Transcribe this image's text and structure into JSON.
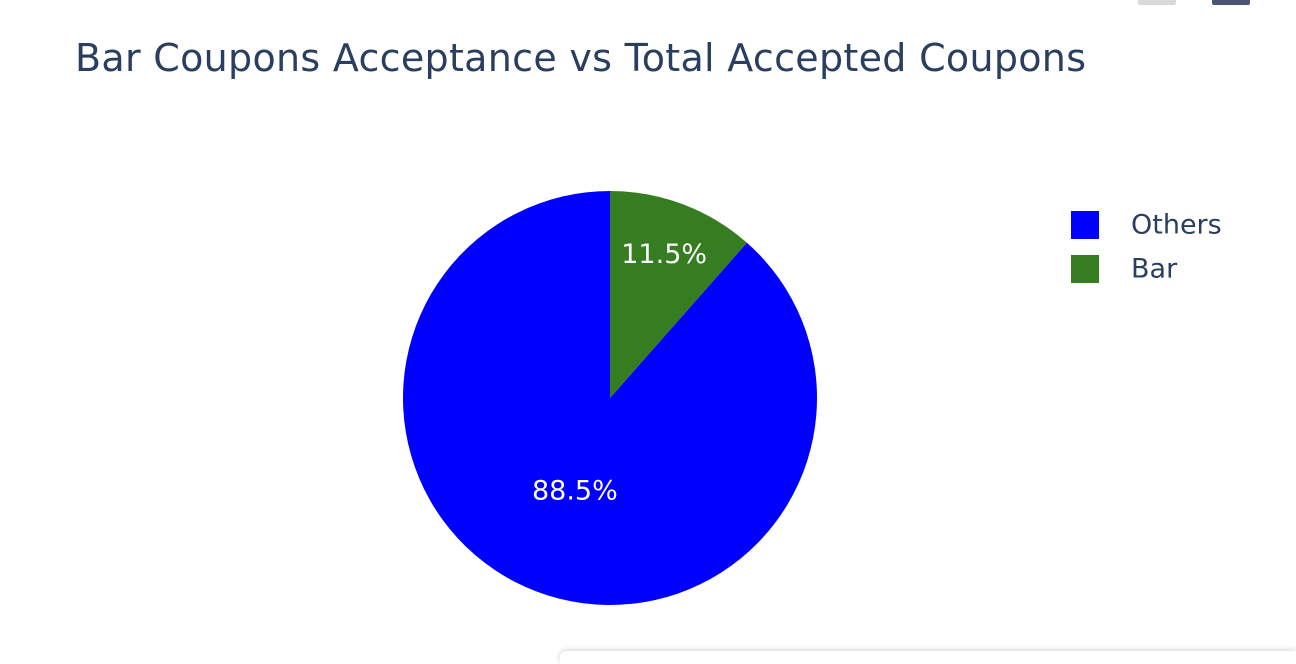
{
  "chart_data": {
    "type": "pie",
    "title": "Bar Coupons Acceptance vs Total Accepted Coupons",
    "slices": [
      {
        "name": "Others",
        "value": 88.5,
        "label": "88.5%",
        "color": "#0000ff"
      },
      {
        "name": "Bar",
        "value": 11.5,
        "label": "11.5%",
        "color": "#367c21"
      }
    ],
    "legend": {
      "placement": "top-right",
      "items": [
        {
          "name": "Others",
          "color": "#0000ff"
        },
        {
          "name": "Bar",
          "color": "#367c21"
        }
      ]
    },
    "direction": "counterclockwise",
    "start": "top"
  },
  "colors": {
    "title": "#2a3f5f",
    "label_text": "#ffffff",
    "background": "#ffffff"
  },
  "modebar": {
    "icons": [
      "camera-icon",
      "plotly-logo-icon"
    ]
  }
}
